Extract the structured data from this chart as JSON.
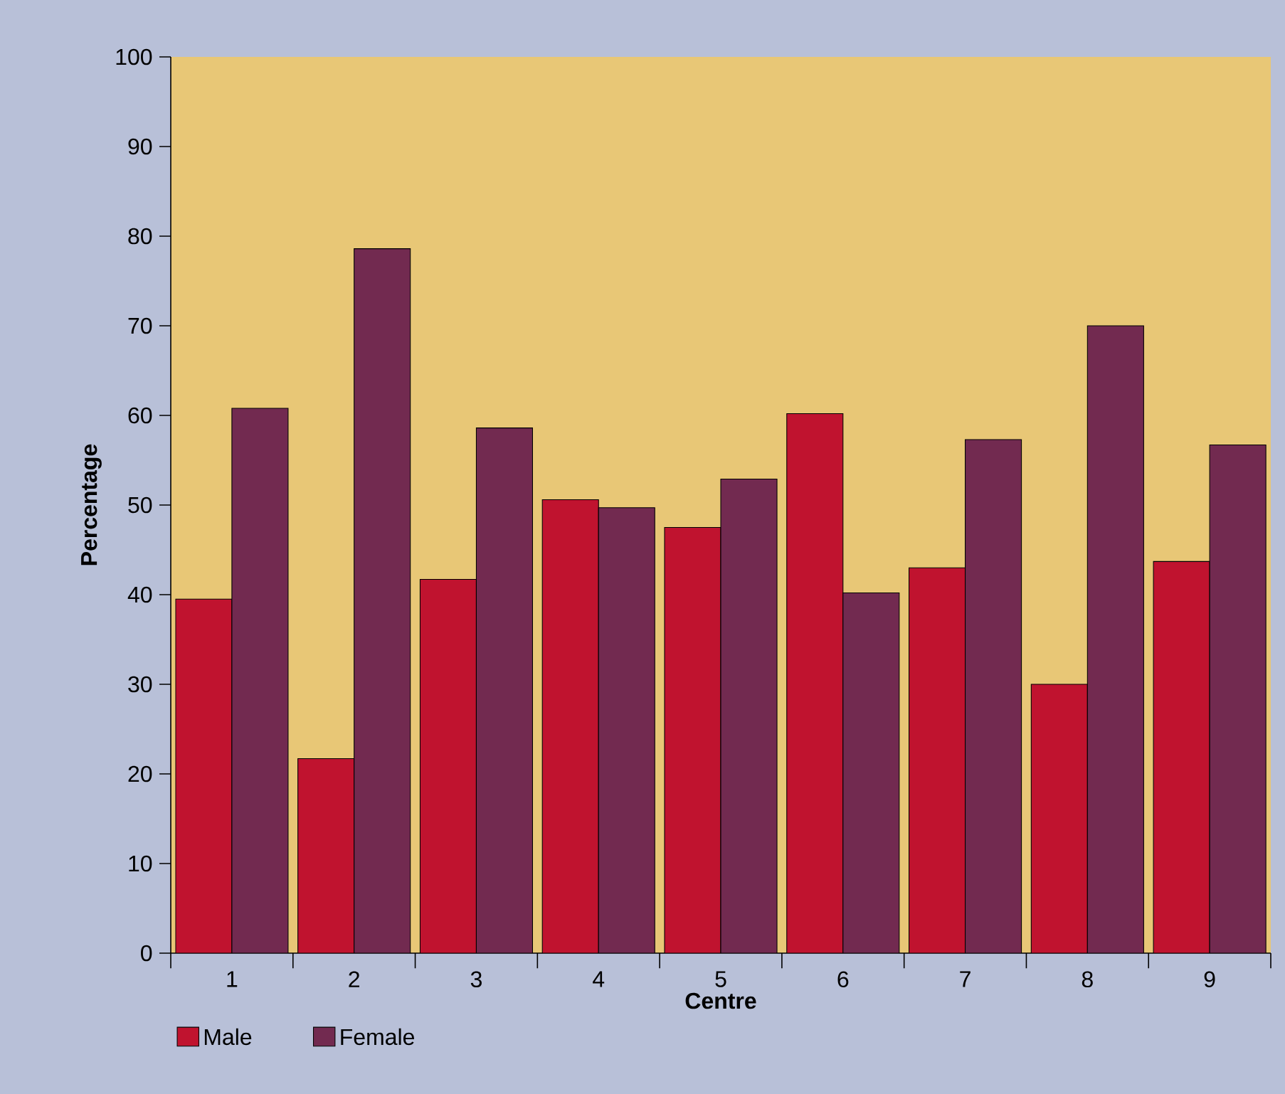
{
  "chart_data": {
    "type": "bar",
    "xlabel": "Centre",
    "ylabel": "Percentage",
    "categories": [
      "1",
      "2",
      "3",
      "4",
      "5",
      "6",
      "7",
      "8",
      "9"
    ],
    "series": [
      {
        "name": "Male",
        "color": "#c0132f",
        "values": [
          39.5,
          21.7,
          41.7,
          50.6,
          47.5,
          60.2,
          43.0,
          30.0,
          43.7
        ]
      },
      {
        "name": "Female",
        "color": "#722a50",
        "values": [
          60.8,
          78.6,
          58.6,
          49.7,
          52.9,
          40.2,
          57.3,
          70.0,
          56.7
        ]
      }
    ],
    "ylim": [
      0,
      100
    ],
    "yticks": [
      0,
      10,
      20,
      30,
      40,
      50,
      60,
      70,
      80,
      90,
      100
    ],
    "grid": false,
    "legend": "bottom left"
  }
}
